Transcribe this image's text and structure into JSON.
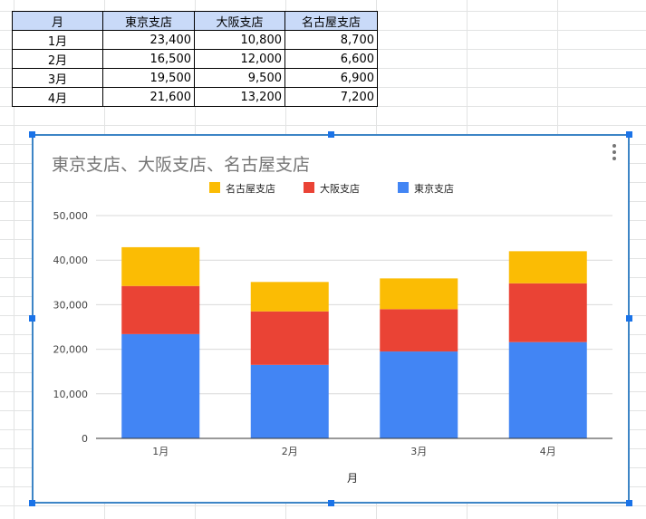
{
  "table": {
    "headers": [
      "月",
      "東京支店",
      "大阪支店",
      "名古屋支店"
    ],
    "rows": [
      [
        "1月",
        "23,400",
        "10,800",
        "8,700"
      ],
      [
        "2月",
        "16,500",
        "12,000",
        "6,600"
      ],
      [
        "3月",
        "19,500",
        "9,500",
        "6,900"
      ],
      [
        "4月",
        "21,600",
        "13,200",
        "7,200"
      ]
    ]
  },
  "chart_data": {
    "type": "bar",
    "stacked": true,
    "title": "東京支店、大阪支店、名古屋支店",
    "xlabel": "月",
    "ylabel": "",
    "categories": [
      "1月",
      "2月",
      "3月",
      "4月"
    ],
    "series": [
      {
        "name": "東京支店",
        "values": [
          23400,
          16500,
          19500,
          21600
        ],
        "color": "#4285f4"
      },
      {
        "name": "大阪支店",
        "values": [
          10800,
          12000,
          9500,
          13200
        ],
        "color": "#ea4335"
      },
      {
        "name": "名古屋支店",
        "values": [
          8700,
          6600,
          6900,
          7200
        ],
        "color": "#fbbc04"
      }
    ],
    "legend_order": [
      "名古屋支店",
      "大阪支店",
      "東京支店"
    ],
    "ylim": [
      0,
      50000
    ],
    "yticks": [
      0,
      10000,
      20000,
      30000,
      40000,
      50000
    ],
    "ytick_labels": [
      "0",
      "10,000",
      "20,000",
      "30,000",
      "40,000",
      "50,000"
    ],
    "grid": true,
    "legend_position": "top"
  },
  "colors": {
    "header_fill": "#c9daf8",
    "selection": "#1a73e8"
  },
  "icons": {
    "chart_menu": "more-vert-icon"
  }
}
